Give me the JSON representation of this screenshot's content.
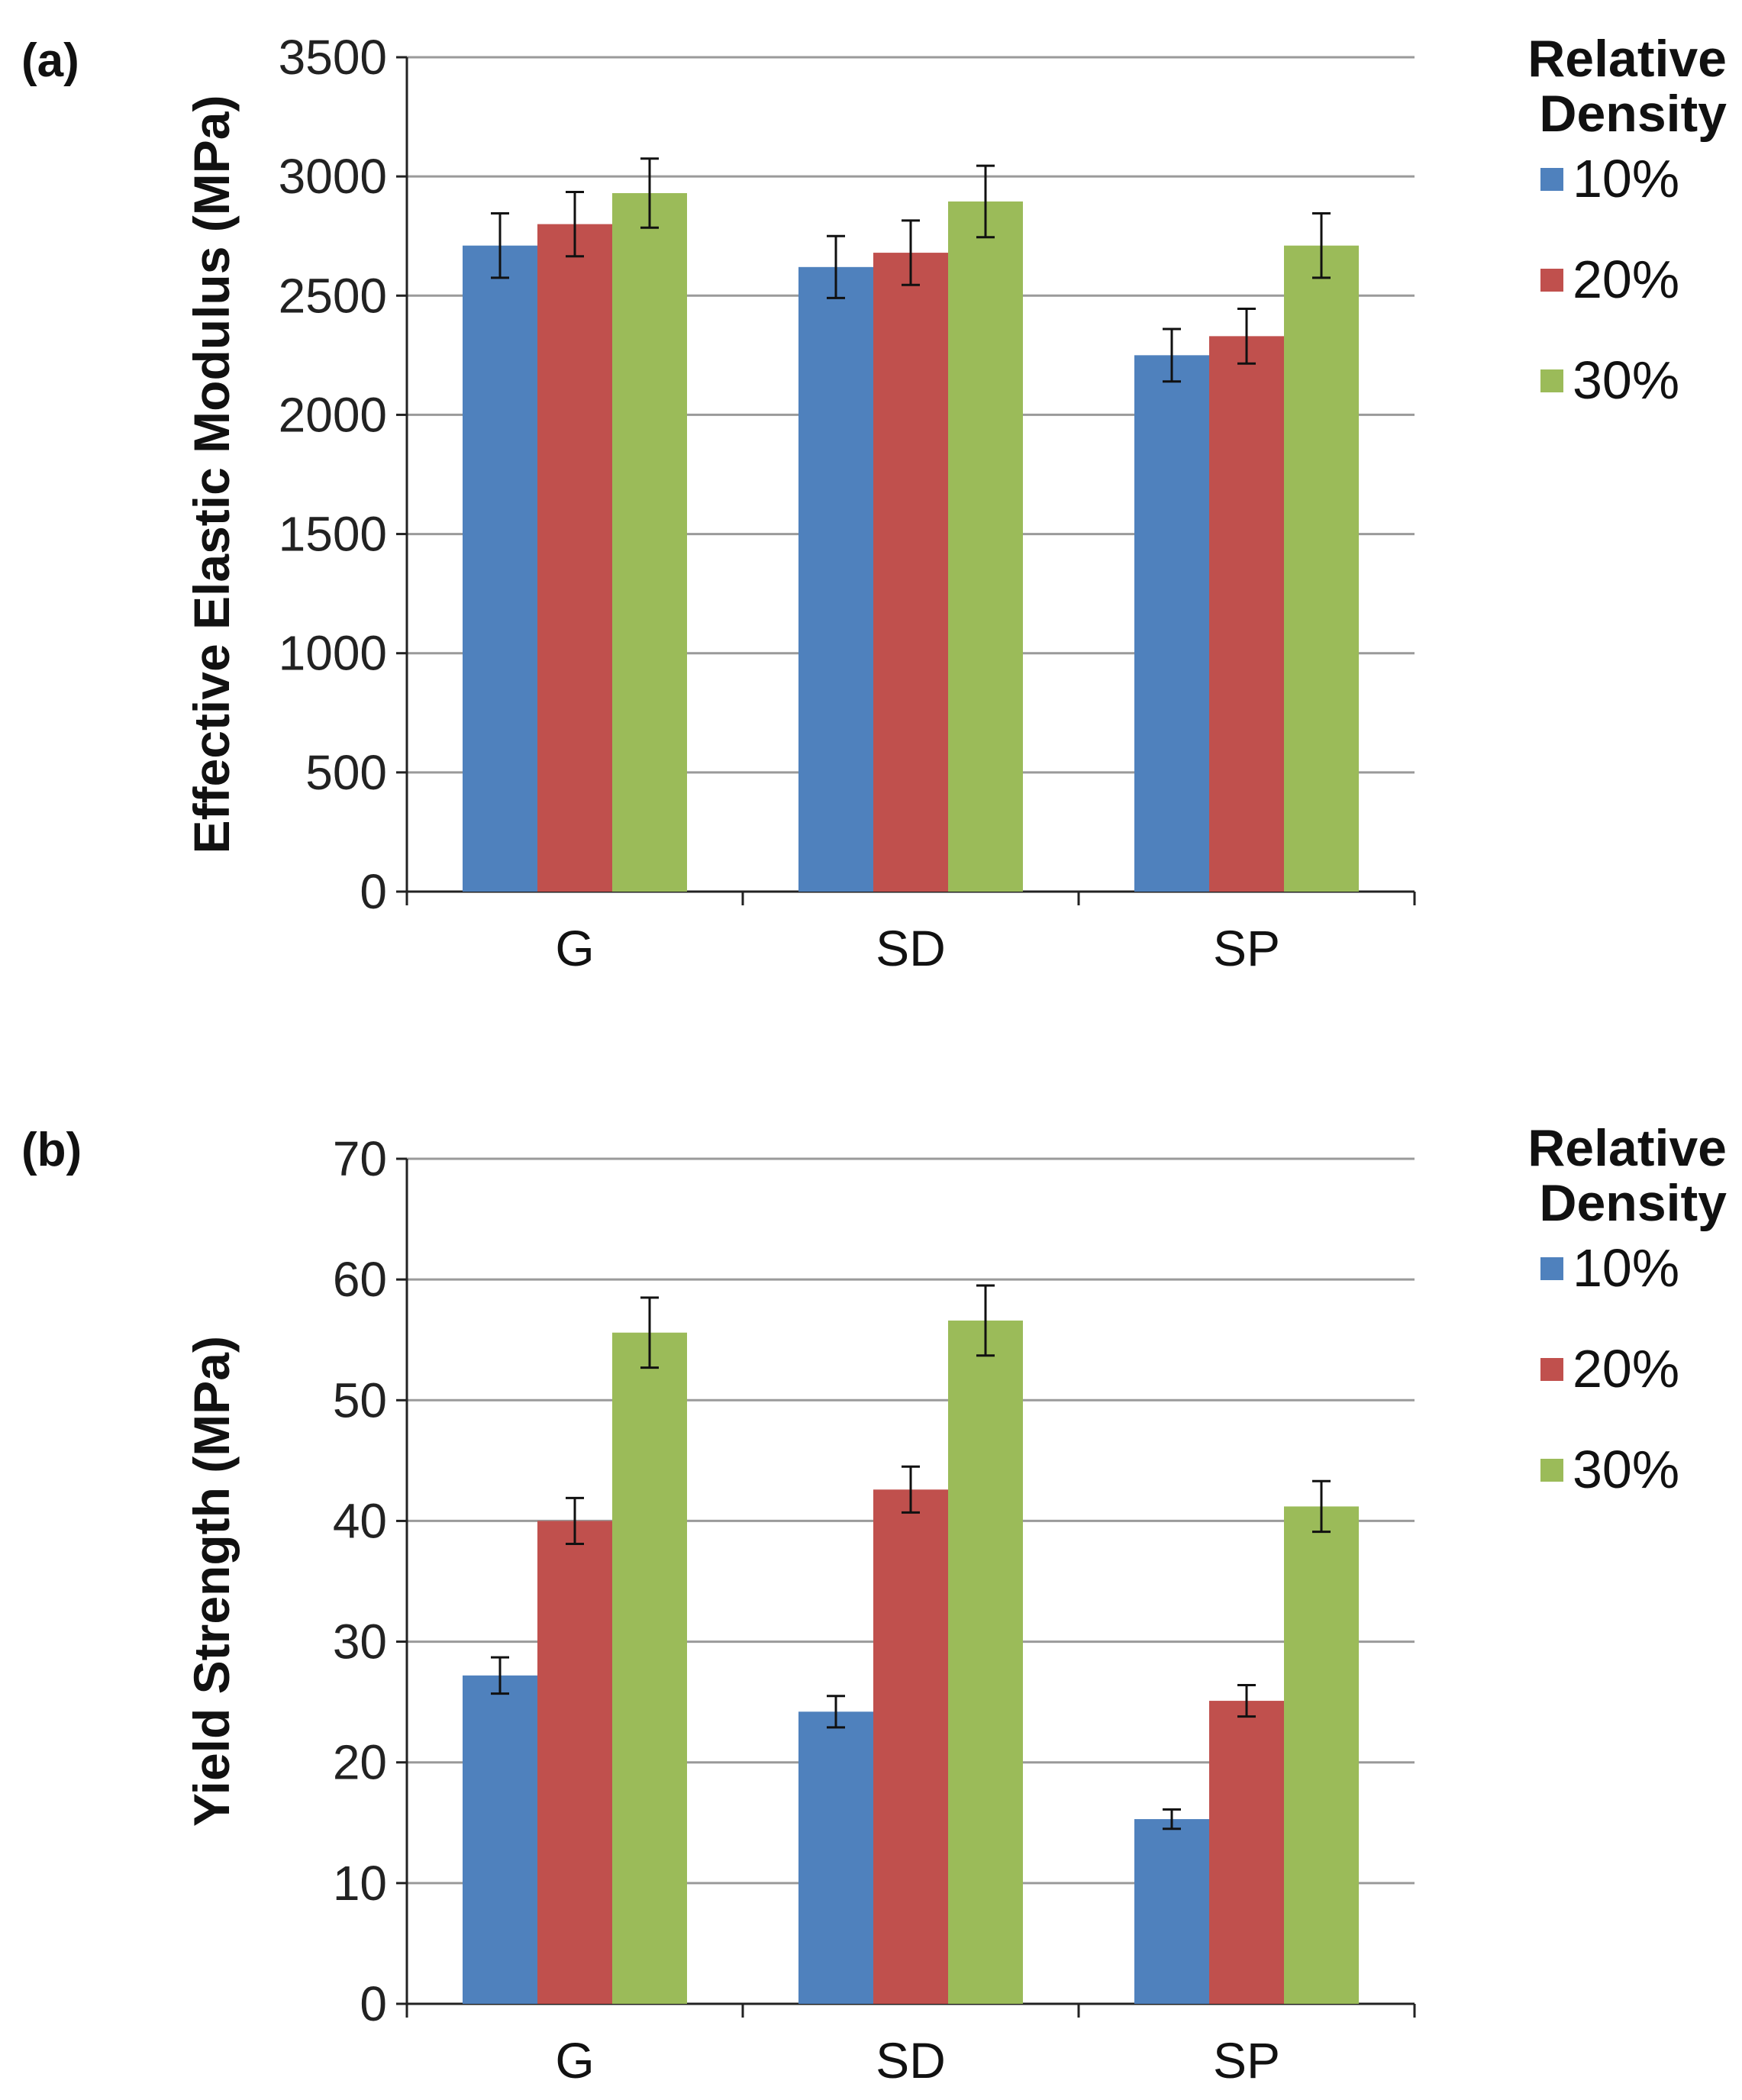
{
  "chart_data": [
    {
      "type": "bar",
      "panel_label": "(a)",
      "categories": [
        "G",
        "SD",
        "SP"
      ],
      "ylabel": "Effective Elastic Modulus (MPa)",
      "xlabel": "",
      "ylim": [
        0,
        3500
      ],
      "yticks": [
        0,
        500,
        1000,
        1500,
        2000,
        2500,
        3000,
        3500
      ],
      "grid": true,
      "legend": {
        "title": [
          "Relative",
          "Density"
        ],
        "position": "right"
      },
      "series": [
        {
          "name": "10%",
          "color": "#4f81bd",
          "values": [
            2710,
            2620,
            2250
          ],
          "errors": [
            135,
            130,
            110
          ]
        },
        {
          "name": "20%",
          "color": "#c0504d",
          "values": [
            2800,
            2680,
            2330
          ],
          "errors": [
            135,
            135,
            115
          ]
        },
        {
          "name": "30%",
          "color": "#9bbb59",
          "values": [
            2930,
            2895,
            2710
          ],
          "errors": [
            145,
            150,
            135
          ]
        }
      ]
    },
    {
      "type": "bar",
      "panel_label": "(b)",
      "categories": [
        "G",
        "SD",
        "SP"
      ],
      "ylabel": "Yield Strength (MPa)",
      "xlabel": "",
      "ylim": [
        0,
        70
      ],
      "yticks": [
        0,
        10,
        20,
        30,
        40,
        50,
        60,
        70
      ],
      "grid": true,
      "legend": {
        "title": [
          "Relative",
          "Density"
        ],
        "position": "right"
      },
      "series": [
        {
          "name": "10%",
          "color": "#4f81bd",
          "values": [
            27.2,
            24.2,
            15.3
          ],
          "errors": [
            1.5,
            1.3,
            0.8
          ]
        },
        {
          "name": "20%",
          "color": "#c0504d",
          "values": [
            40.0,
            42.6,
            25.1
          ],
          "errors": [
            1.9,
            1.9,
            1.3
          ]
        },
        {
          "name": "30%",
          "color": "#9bbb59",
          "values": [
            55.6,
            56.6,
            41.2
          ],
          "errors": [
            2.9,
            2.9,
            2.1
          ]
        }
      ]
    }
  ]
}
